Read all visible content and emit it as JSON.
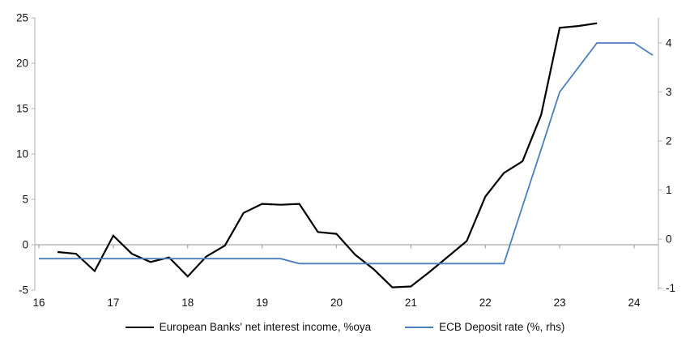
{
  "chart_data": {
    "type": "line",
    "title": "",
    "legend_position": "bottom",
    "grid": "zero-line-only",
    "colors": {
      "axis_line": "#bfbfbf",
      "zero_line": "#a6a6a6",
      "tick_text": "#111111"
    },
    "series": [
      {
        "name": "European Banks' net interest income, %oya",
        "color": "#000000",
        "axis": "left",
        "stroke_width": 2.2,
        "points": [
          [
            16.25,
            -0.8
          ],
          [
            16.5,
            -1.0
          ],
          [
            16.75,
            -2.9
          ],
          [
            17.0,
            1.0
          ],
          [
            17.25,
            -1.0
          ],
          [
            17.5,
            -1.9
          ],
          [
            17.75,
            -1.4
          ],
          [
            18.0,
            -3.5
          ],
          [
            18.25,
            -1.3
          ],
          [
            18.5,
            -0.1
          ],
          [
            18.75,
            3.5
          ],
          [
            19.0,
            4.5
          ],
          [
            19.25,
            4.4
          ],
          [
            19.5,
            4.5
          ],
          [
            19.75,
            1.4
          ],
          [
            20.0,
            1.2
          ],
          [
            20.25,
            -1.1
          ],
          [
            20.5,
            -2.7
          ],
          [
            20.75,
            -4.7
          ],
          [
            21.0,
            -4.6
          ],
          [
            21.25,
            -3.0
          ],
          [
            21.5,
            -1.3
          ],
          [
            21.75,
            0.4
          ],
          [
            22.0,
            5.3
          ],
          [
            22.25,
            7.9
          ],
          [
            22.5,
            9.2
          ],
          [
            22.75,
            14.3
          ],
          [
            23.0,
            23.9
          ],
          [
            23.25,
            24.1
          ],
          [
            23.5,
            24.4
          ]
        ]
      },
      {
        "name": "ECB Deposit rate (%, rhs)",
        "color": "#4a7fbf",
        "axis": "right",
        "stroke_width": 1.8,
        "points": [
          [
            16.0,
            -0.4
          ],
          [
            19.25,
            -0.4
          ],
          [
            19.5,
            -0.5
          ],
          [
            22.25,
            -0.5
          ],
          [
            22.5,
            0.67
          ],
          [
            22.75,
            1.83
          ],
          [
            23.0,
            3.0
          ],
          [
            23.25,
            3.5
          ],
          [
            23.5,
            4.0
          ],
          [
            24.0,
            4.0
          ],
          [
            24.25,
            3.75
          ]
        ]
      }
    ],
    "x_axis": {
      "ticks": [
        16,
        17,
        18,
        19,
        20,
        21,
        22,
        23,
        24
      ],
      "tick_labels": [
        "16",
        "17",
        "18",
        "19",
        "20",
        "21",
        "22",
        "23",
        "24"
      ],
      "min": 16,
      "max": 24.35
    },
    "y_axis_left": {
      "ticks": [
        -5,
        0,
        5,
        10,
        15,
        20,
        25
      ],
      "tick_labels": [
        "-5",
        "0",
        "5",
        "10",
        "15",
        "20",
        "25"
      ],
      "min": -5,
      "max": 25
    },
    "y_axis_right": {
      "ticks": [
        -1,
        0,
        1,
        2,
        3,
        4
      ],
      "tick_labels": [
        "-1",
        "0",
        "1",
        "2",
        "3",
        "4"
      ],
      "min": -1.1,
      "max": 4.5
    }
  }
}
